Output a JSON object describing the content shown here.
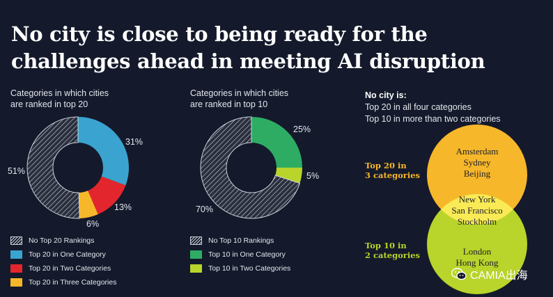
{
  "title": "No city is close to being ready for the challenges ahead in meeting AI disruption",
  "chart_data": [
    {
      "type": "donut",
      "subtitle_line1": "Categories in which cities",
      "subtitle_line2": "are ranked in top 20",
      "slices": [
        {
          "label": "Top 20 in One Category",
          "value": 31,
          "display": "31%",
          "color": "#3aa3cf",
          "pattern": "solid"
        },
        {
          "label": "Top 20 in Two Categories",
          "value": 13,
          "display": "13%",
          "color": "#e3262d",
          "pattern": "solid"
        },
        {
          "label": "Top 20 in Three Categories",
          "value": 6,
          "display": "6%",
          "color": "#f7b72a",
          "pattern": "solid"
        },
        {
          "label": "No Top 20 Rankings",
          "value": 51,
          "display": "51%",
          "color": "#cfd2db",
          "pattern": "hatch"
        }
      ],
      "legend_order": [
        "No Top 20 Rankings",
        "Top 20 in One Category",
        "Top 20 in Two Categories",
        "Top 20 in Three Categories"
      ]
    },
    {
      "type": "donut",
      "subtitle_line1": "Categories in which cities",
      "subtitle_line2": "are ranked in top 10",
      "slices": [
        {
          "label": "Top 10 in One Category",
          "value": 25,
          "display": "25%",
          "color": "#2eac64",
          "pattern": "solid"
        },
        {
          "label": "Top 10 in Two Categories",
          "value": 5,
          "display": "5%",
          "color": "#b9d42a",
          "pattern": "solid"
        },
        {
          "label": "No Top 10 Rankings",
          "value": 70,
          "display": "70%",
          "color": "#cfd2db",
          "pattern": "hatch"
        }
      ],
      "legend_order": [
        "No Top 10 Rankings",
        "Top 10 in One Category",
        "Top 10 in Two Categories"
      ]
    }
  ],
  "note": {
    "heading": "No city is:",
    "line1": "Top 20 in all four categories",
    "line2": "Top 10 in more than two categories"
  },
  "venn": {
    "top_circle": {
      "label_line1": "Top 20 in",
      "label_line2": "3 categories",
      "color": "#f7b72a",
      "cities": [
        "Amsterdam",
        "Sydney",
        "Beijing"
      ]
    },
    "bottom_circle": {
      "label_line1": "Top 10 in",
      "label_line2": "2 categories",
      "color": "#b9d42a",
      "cities": [
        "London",
        "Hong Kong"
      ]
    },
    "overlap": {
      "color": "#f9ea56",
      "cities": [
        "New York",
        "San Francisco",
        "Stockholm"
      ]
    }
  },
  "watermark": "CAMIA出海",
  "watermark_icon": "wechat-icon"
}
